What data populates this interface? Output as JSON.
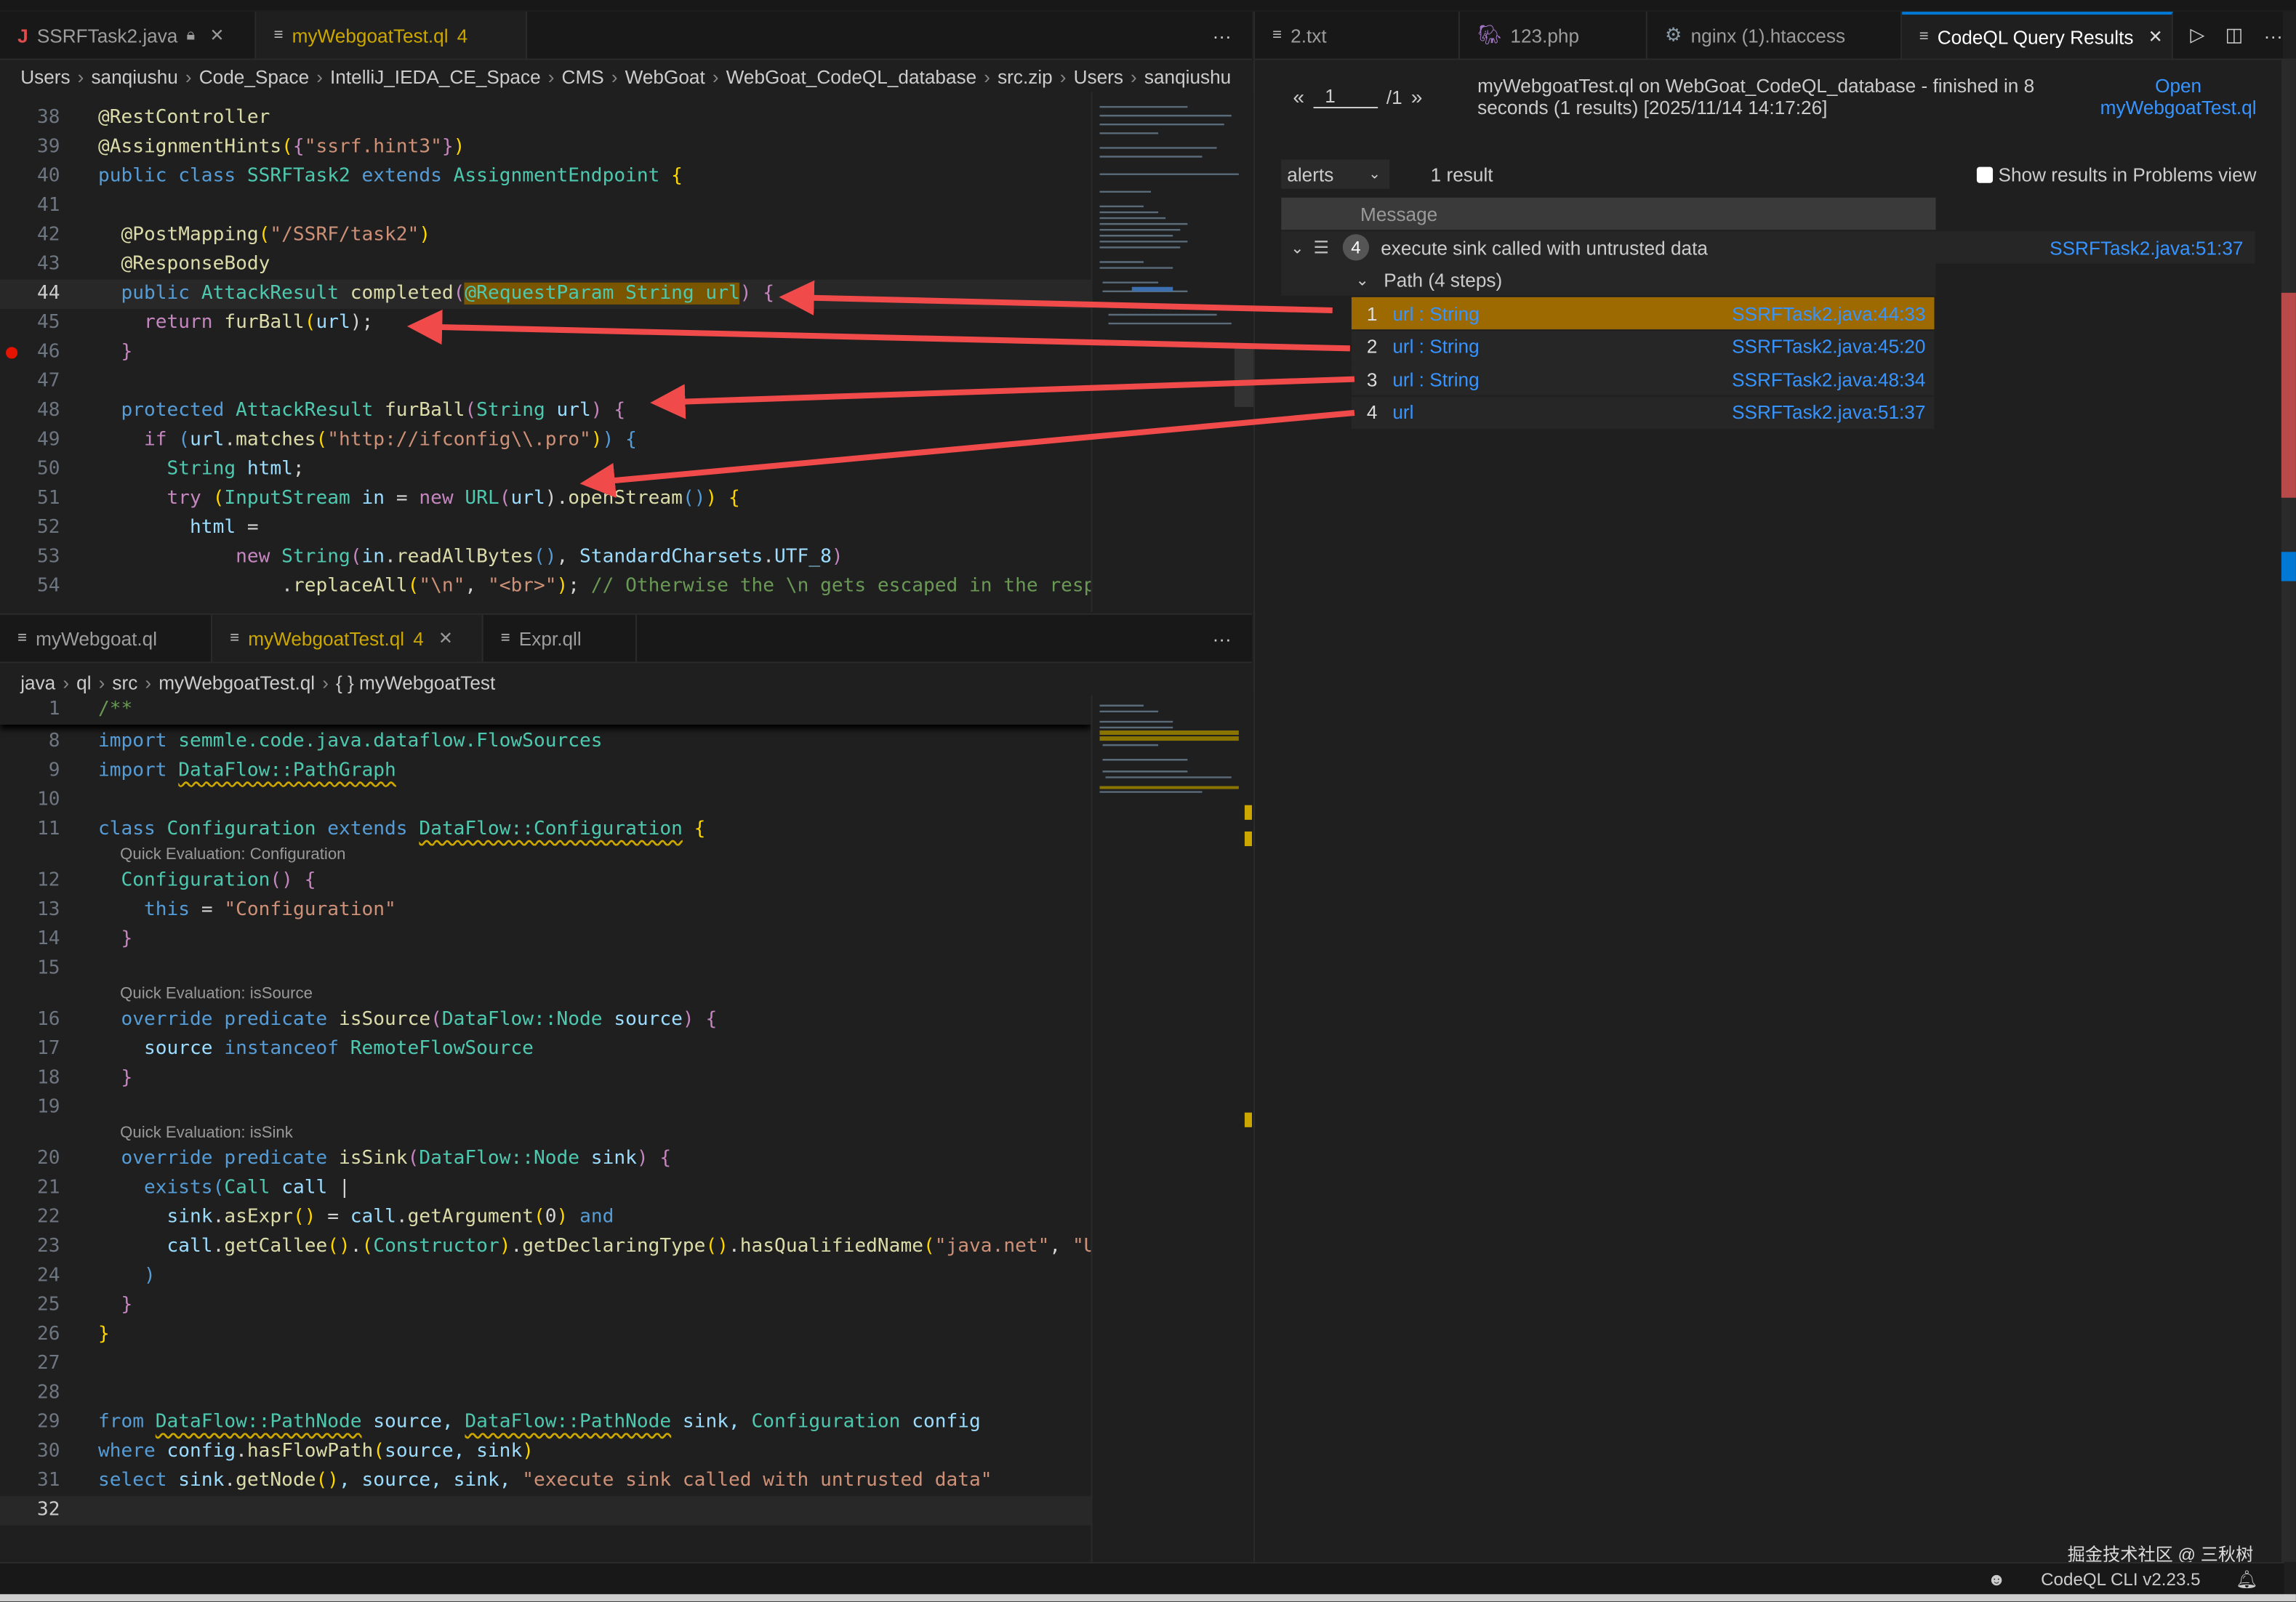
{
  "top_editor": {
    "tabs": [
      {
        "label": "SSRFTask2.java",
        "icon": "java-icon",
        "locked": true
      },
      {
        "label": "myWebgoatTest.ql",
        "badge": "4",
        "icon": "file-lines-icon"
      }
    ],
    "breadcrumb": [
      "Users",
      "sanqiushu",
      "Code_Space",
      "IntelliJ_IEDA_CE_Space",
      "CMS",
      "WebGoat",
      "WebGoat_CodeQL_database",
      "src.zip",
      "Users",
      "sanqiushu"
    ],
    "current_line": "44",
    "breakpoint_line": "46",
    "lines": [
      {
        "n": "38",
        "t": [
          [
            "@RestController",
            "a"
          ]
        ]
      },
      {
        "n": "39",
        "t": [
          [
            "@AssignmentHints",
            "a"
          ],
          [
            "(",
            "b"
          ],
          [
            "{",
            "c"
          ],
          [
            "\"ssrf.hint3\"",
            "s"
          ],
          [
            "}",
            "c"
          ],
          [
            ")",
            "b"
          ]
        ]
      },
      {
        "n": "40",
        "t": [
          [
            "public class ",
            "k"
          ],
          [
            "SSRFTask2 ",
            "t"
          ],
          [
            "extends ",
            "k"
          ],
          [
            "AssignmentEndpoint ",
            "t"
          ],
          [
            "{",
            "b"
          ]
        ]
      },
      {
        "n": "41",
        "t": []
      },
      {
        "n": "42",
        "t": [
          [
            "  @PostMapping",
            "a"
          ],
          [
            "(",
            "b"
          ],
          [
            "\"/SSRF/task2\"",
            "s"
          ],
          [
            ")",
            "b"
          ]
        ]
      },
      {
        "n": "43",
        "t": [
          [
            "  @ResponseBody",
            "a"
          ]
        ]
      },
      {
        "n": "44",
        "t": [
          [
            "  public ",
            "k"
          ],
          [
            "AttackResult ",
            "t"
          ],
          [
            "completed",
            "f"
          ],
          [
            "(",
            "c"
          ],
          [
            "@RequestParam String url",
            "hl t"
          ],
          [
            ") ",
            "c"
          ],
          [
            "{",
            "c"
          ]
        ]
      },
      {
        "n": "45",
        "t": [
          [
            "    return ",
            "c"
          ],
          [
            "furBall",
            "f"
          ],
          [
            "(",
            "b"
          ],
          [
            "url",
            "v"
          ],
          [
            ");",
            "p"
          ]
        ]
      },
      {
        "n": "46",
        "t": [
          [
            "  }",
            "c"
          ]
        ]
      },
      {
        "n": "47",
        "t": []
      },
      {
        "n": "48",
        "t": [
          [
            "  protected ",
            "k"
          ],
          [
            "AttackResult ",
            "t"
          ],
          [
            "furBall",
            "f"
          ],
          [
            "(",
            "c"
          ],
          [
            "String ",
            "t"
          ],
          [
            "url",
            "v"
          ],
          [
            ") ",
            "c"
          ],
          [
            "{",
            "c"
          ]
        ]
      },
      {
        "n": "49",
        "t": [
          [
            "    if ",
            "c"
          ],
          [
            "(",
            "k"
          ],
          [
            "url",
            "v"
          ],
          [
            ".",
            "p"
          ],
          [
            "matches",
            "f"
          ],
          [
            "(",
            "b"
          ],
          [
            "\"http://ifconfig\\\\.pro\"",
            "s"
          ],
          [
            ")",
            "b"
          ],
          [
            ") ",
            "k"
          ],
          [
            "{",
            "k"
          ]
        ]
      },
      {
        "n": "50",
        "t": [
          [
            "      String ",
            "t"
          ],
          [
            "html",
            "v"
          ],
          [
            ";",
            "p"
          ]
        ]
      },
      {
        "n": "51",
        "t": [
          [
            "      try ",
            "c"
          ],
          [
            "(",
            "b"
          ],
          [
            "InputStream ",
            "t"
          ],
          [
            "in ",
            "v"
          ],
          [
            "= ",
            "p"
          ],
          [
            "new ",
            "c"
          ],
          [
            "URL",
            "t"
          ],
          [
            "(",
            "c"
          ],
          [
            "url",
            "v"
          ],
          [
            ").",
            "p"
          ],
          [
            "openStream",
            "f"
          ],
          [
            "()",
            "k"
          ],
          [
            ") ",
            "b"
          ],
          [
            "{",
            "b"
          ]
        ]
      },
      {
        "n": "52",
        "t": [
          [
            "        html ",
            "v"
          ],
          [
            "=",
            "p"
          ]
        ]
      },
      {
        "n": "53",
        "t": [
          [
            "            new ",
            "c"
          ],
          [
            "String",
            "t"
          ],
          [
            "(",
            "c"
          ],
          [
            "in",
            "v"
          ],
          [
            ".",
            "p"
          ],
          [
            "readAllBytes",
            "f"
          ],
          [
            "()",
            "k"
          ],
          [
            ", ",
            "p"
          ],
          [
            "StandardCharsets",
            "v"
          ],
          [
            ".",
            "p"
          ],
          [
            "UTF_8",
            "v"
          ],
          [
            ")",
            "c"
          ]
        ]
      },
      {
        "n": "54",
        "t": [
          [
            "                .",
            "p"
          ],
          [
            "replaceAll",
            "f"
          ],
          [
            "(",
            "b"
          ],
          [
            "\"\\n\"",
            "s"
          ],
          [
            ", ",
            "p"
          ],
          [
            "\"<br>\"",
            "s"
          ],
          [
            ")",
            "b"
          ],
          [
            "; ",
            "p"
          ],
          [
            "// Otherwise the \\n gets escaped in the resp",
            "m"
          ]
        ]
      }
    ]
  },
  "bottom_editor": {
    "tabs": [
      {
        "label": "myWebgoat.ql"
      },
      {
        "label": "myWebgoatTest.ql",
        "badge": "4"
      },
      {
        "label": "Expr.qll"
      }
    ],
    "breadcrumb": [
      "java",
      "ql",
      "src",
      "myWebgoatTest.ql",
      "{ } myWebgoatTest"
    ],
    "lines": [
      {
        "n": "1",
        "t": [
          [
            "/**",
            "m"
          ]
        ]
      },
      {
        "n": "8",
        "t": [
          [
            "import ",
            "k"
          ],
          [
            "semmle.code.java.dataflow.FlowSources",
            "t"
          ]
        ]
      },
      {
        "n": "9",
        "t": [
          [
            "import ",
            "k"
          ],
          [
            "DataFlow::PathGraph",
            "t sq"
          ]
        ]
      },
      {
        "n": "10",
        "t": []
      },
      {
        "n": "11",
        "t": [
          [
            "class ",
            "k"
          ],
          [
            "Configuration ",
            "t"
          ],
          [
            "extends ",
            "k"
          ],
          [
            "DataFlow::Configuration",
            "t sq"
          ],
          [
            " {",
            "b"
          ]
        ]
      },
      {
        "lens": "Quick Evaluation: Configuration"
      },
      {
        "n": "12",
        "t": [
          [
            "  Configuration",
            "t"
          ],
          [
            "() ",
            "c"
          ],
          [
            "{",
            "c"
          ]
        ]
      },
      {
        "n": "13",
        "t": [
          [
            "    this ",
            "k"
          ],
          [
            "= ",
            "p"
          ],
          [
            "\"Configuration\"",
            "s"
          ]
        ]
      },
      {
        "n": "14",
        "t": [
          [
            "  }",
            "c"
          ]
        ]
      },
      {
        "n": "15",
        "t": []
      },
      {
        "lens": "Quick Evaluation: isSource"
      },
      {
        "n": "16",
        "t": [
          [
            "  override predicate ",
            "k"
          ],
          [
            "isSource",
            "f"
          ],
          [
            "(",
            "c"
          ],
          [
            "DataFlow::Node ",
            "t"
          ],
          [
            "source",
            "v"
          ],
          [
            ") ",
            "c"
          ],
          [
            "{",
            "c"
          ]
        ]
      },
      {
        "n": "17",
        "t": [
          [
            "    source ",
            "v"
          ],
          [
            "instanceof ",
            "k"
          ],
          [
            "RemoteFlowSource",
            "t"
          ]
        ]
      },
      {
        "n": "18",
        "t": [
          [
            "  }",
            "c"
          ]
        ]
      },
      {
        "n": "19",
        "t": []
      },
      {
        "lens": "Quick Evaluation: isSink"
      },
      {
        "n": "20",
        "t": [
          [
            "  override predicate ",
            "k"
          ],
          [
            "isSink",
            "f"
          ],
          [
            "(",
            "c"
          ],
          [
            "DataFlow::Node ",
            "t"
          ],
          [
            "sink",
            "v"
          ],
          [
            ") ",
            "c"
          ],
          [
            "{",
            "c"
          ]
        ]
      },
      {
        "n": "21",
        "t": [
          [
            "    exists",
            "k"
          ],
          [
            "(",
            "k"
          ],
          [
            "Call ",
            "t"
          ],
          [
            "call ",
            "v"
          ],
          [
            "|",
            "p"
          ]
        ]
      },
      {
        "n": "22",
        "t": [
          [
            "      sink",
            "v"
          ],
          [
            ".",
            "p"
          ],
          [
            "asExpr",
            "f"
          ],
          [
            "()",
            "b"
          ],
          [
            " = ",
            "p"
          ],
          [
            "call",
            "v"
          ],
          [
            ".",
            "p"
          ],
          [
            "getArgument",
            "f"
          ],
          [
            "(",
            "b"
          ],
          [
            "0",
            "p"
          ],
          [
            ") ",
            "b"
          ],
          [
            "and",
            "k"
          ]
        ]
      },
      {
        "n": "23",
        "t": [
          [
            "      call",
            "v"
          ],
          [
            ".",
            "p"
          ],
          [
            "getCallee",
            "f"
          ],
          [
            "()",
            "b"
          ],
          [
            ".",
            "p"
          ],
          [
            "(",
            "b"
          ],
          [
            "Constructor",
            "t"
          ],
          [
            ")",
            "b"
          ],
          [
            ".",
            "p"
          ],
          [
            "getDeclaringType",
            "f"
          ],
          [
            "()",
            "b"
          ],
          [
            ".",
            "p"
          ],
          [
            "hasQualifiedName",
            "f"
          ],
          [
            "(",
            "b"
          ],
          [
            "\"java.net\"",
            "s"
          ],
          [
            ", ",
            "p"
          ],
          [
            "\"U",
            "s"
          ]
        ]
      },
      {
        "n": "24",
        "t": [
          [
            "    )",
            "k"
          ]
        ]
      },
      {
        "n": "25",
        "t": [
          [
            "  }",
            "c"
          ]
        ]
      },
      {
        "n": "26",
        "t": [
          [
            "}",
            "b"
          ]
        ]
      },
      {
        "n": "27",
        "t": []
      },
      {
        "n": "28",
        "t": []
      },
      {
        "n": "29",
        "t": [
          [
            "from ",
            "k"
          ],
          [
            "DataFlow::PathNode",
            "t sq"
          ],
          [
            " source, ",
            "v"
          ],
          [
            "DataFlow::PathNode",
            "t sq"
          ],
          [
            " sink, ",
            "v"
          ],
          [
            "Configuration ",
            "t"
          ],
          [
            "config",
            "v"
          ]
        ]
      },
      {
        "n": "30",
        "t": [
          [
            "where ",
            "k"
          ],
          [
            "config",
            "v"
          ],
          [
            ".",
            "p"
          ],
          [
            "hasFlowPath",
            "f"
          ],
          [
            "(",
            "b"
          ],
          [
            "source, sink",
            "v"
          ],
          [
            ")",
            "b"
          ]
        ]
      },
      {
        "n": "31",
        "t": [
          [
            "select ",
            "k"
          ],
          [
            "sink",
            "v"
          ],
          [
            ".",
            "p"
          ],
          [
            "getNode",
            "f"
          ],
          [
            "()",
            "b"
          ],
          [
            ", source, sink, ",
            "v"
          ],
          [
            "\"execute sink called with untrusted data\"",
            "s"
          ]
        ]
      },
      {
        "n": "32",
        "t": []
      }
    ]
  },
  "right_panel": {
    "tabs": [
      {
        "label": "2.txt",
        "icon": "file-lines-icon"
      },
      {
        "label": "123.php",
        "icon": "php-elephant-icon"
      },
      {
        "label": "nginx (1).htaccess",
        "icon": "gear-icon"
      },
      {
        "label": "CodeQL Query Results",
        "icon": "file-lines-icon",
        "active": true
      }
    ],
    "pager": {
      "prev": "«",
      "page": "1",
      "total": "/1",
      "next": "»"
    },
    "summary_line1": "myWebgoatTest.ql on WebGoat_CodeQL_database - finished in 8",
    "summary_line2": "seconds (1 results) [2025/11/14 14:17:26]",
    "open_link_1": "Open",
    "open_link_2": "myWebgoatTest.ql",
    "result_set": "alerts",
    "result_count": "1 result",
    "show_in_problems": "Show results in Problems view",
    "show_in_problems_checked": false,
    "column_header": "Message",
    "alert": {
      "count": "4",
      "message": "execute sink called with untrusted data",
      "location": "SSRFTask2.java:51:37"
    },
    "path_label": "Path (4 steps)",
    "steps": [
      {
        "n": "1",
        "label": "url : String",
        "location": "SSRFTask2.java:44:33",
        "selected": true
      },
      {
        "n": "2",
        "label": "url : String",
        "location": "SSRFTask2.java:45:20"
      },
      {
        "n": "3",
        "label": "url : String",
        "location": "SSRFTask2.java:48:34"
      },
      {
        "n": "4",
        "label": "url",
        "location": "SSRFTask2.java:51:37"
      }
    ]
  },
  "status_bar": {
    "watermark": "掘金技术社区 @ 三秋树",
    "cli_version": "CodeQL CLI v2.23.5"
  },
  "colors": {
    "accent": "#0078d4",
    "selected_step": "#9c6a00",
    "link": "#3794ff",
    "arrow": "#f04a4a",
    "modified_tab": "#cca700"
  }
}
